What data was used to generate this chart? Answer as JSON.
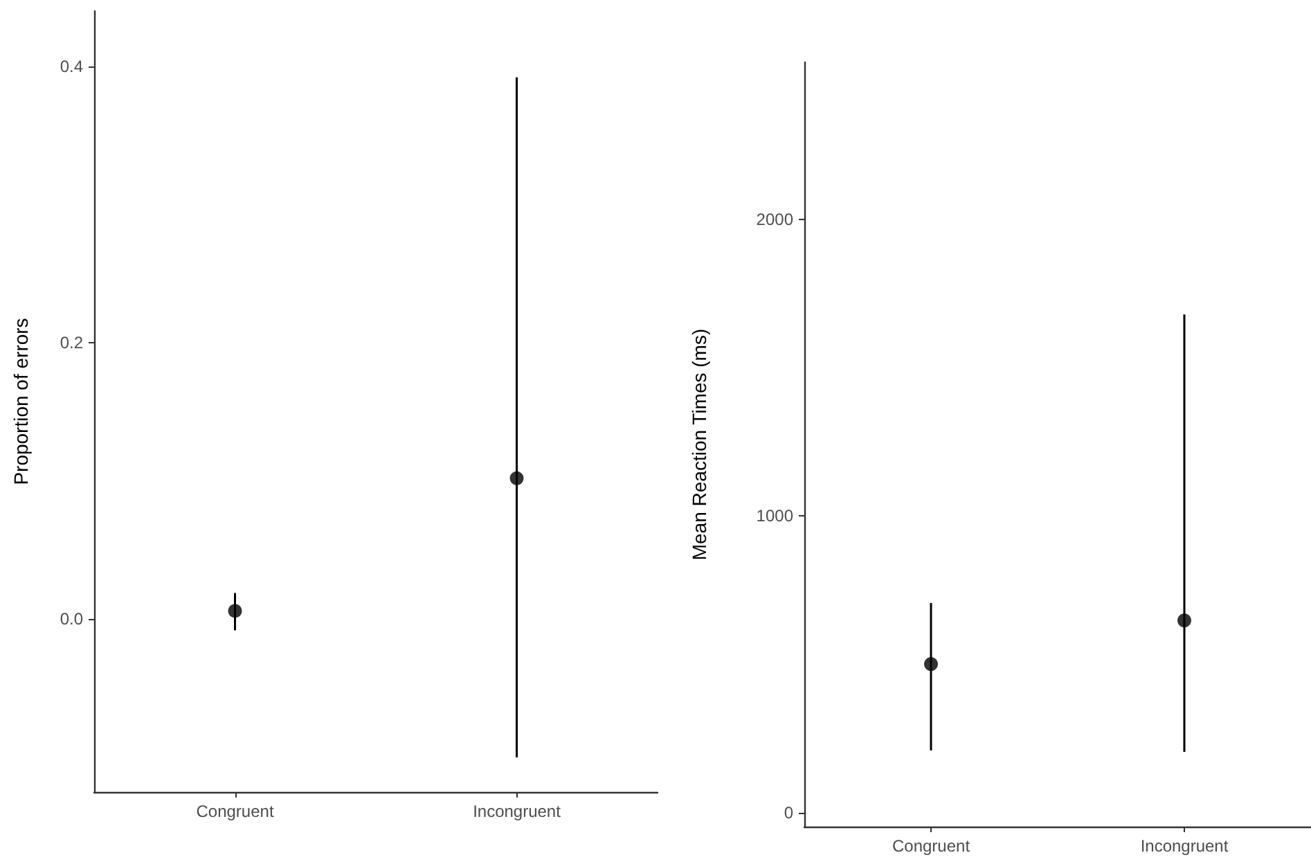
{
  "chart_data": [
    {
      "type": "scatter",
      "ylabel": "Proportion of errors",
      "categories": [
        "Congruent",
        "Incongruent"
      ],
      "ylim": [
        -0.125,
        0.44
      ],
      "yticks": [
        {
          "value": 0,
          "label": "0.0"
        },
        {
          "value": 0.2,
          "label": "0.2"
        },
        {
          "value": 0.4,
          "label": "0.4"
        }
      ],
      "marker": "circle",
      "series": [
        {
          "color": "#000000",
          "x": [
            "Congruent",
            "Incongruent"
          ],
          "values": [
            0.006,
            0.102
          ],
          "errors": [
            [
              -0.008,
              0.019
            ],
            [
              -0.1,
              0.392
            ]
          ]
        }
      ]
    },
    {
      "type": "scatter",
      "ylabel": "Mean Reaction Times (ms)",
      "categories": [
        "Congruent",
        "Incongruent"
      ],
      "ylim": [
        -47,
        2530
      ],
      "yticks": [
        0,
        1000,
        2000
      ],
      "marker": "circle",
      "series": [
        {
          "color": "#000000",
          "x": [
            "Congruent",
            "Incongruent"
          ],
          "values": [
            501,
            648
          ],
          "errors": [
            [
              210,
              707
            ],
            [
              205,
              1680
            ]
          ]
        }
      ]
    }
  ]
}
